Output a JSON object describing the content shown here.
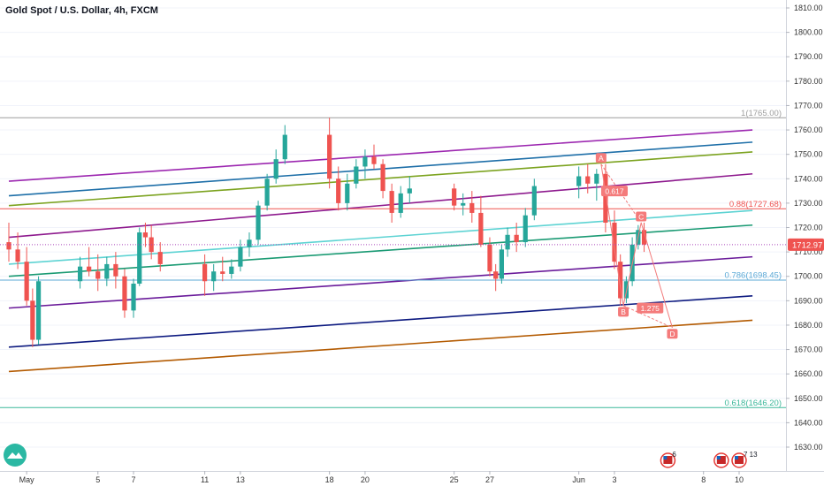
{
  "header": {
    "title": "Gold Spot / U.S. Dollar, 4h, FXCM"
  },
  "price_badge": {
    "label": "1712.97",
    "color": "#ef5350"
  },
  "logo": {
    "name": "tradingview-logo-icon"
  },
  "event_icons": [
    {
      "name": "us-flag-event-icon",
      "count": "6",
      "date": "Jun 6"
    },
    {
      "name": "us-flag-event-icon",
      "count": "",
      "date": "Jun 9"
    },
    {
      "name": "us-flag-event-icon",
      "count": "7 13",
      "date": "Jun 10"
    }
  ],
  "chart_data": {
    "type": "candlestick",
    "title": "Gold Spot / U.S. Dollar, 4h, FXCM",
    "y_axis": {
      "position": "right",
      "ylim": [
        1623,
        1814
      ],
      "ticks": [
        1630,
        1640,
        1650,
        1660,
        1670,
        1680,
        1690,
        1700,
        1710,
        1720,
        1730,
        1740,
        1750,
        1760,
        1770,
        1780,
        1790,
        1800,
        1810
      ],
      "tick_labels": [
        "1630.00",
        "1640.00",
        "1650.00",
        "1660.00",
        "1670.00",
        "1680.00",
        "1690.00",
        "1700.00",
        "1710.00",
        "1720.00",
        "1730.00",
        "1740.00",
        "1750.00",
        "1760.00",
        "1770.00",
        "1780.00",
        "1790.00",
        "1800.00",
        "1810.00"
      ]
    },
    "x_axis": {
      "first_date": "2020-04-30",
      "last_date": "2020-06-10",
      "ticks": [
        {
          "date": "2020-05-01",
          "label": "May"
        },
        {
          "date": "2020-05-05",
          "label": "5"
        },
        {
          "date": "2020-05-07",
          "label": "7"
        },
        {
          "date": "2020-05-11",
          "label": "11"
        },
        {
          "date": "2020-05-13",
          "label": "13"
        },
        {
          "date": "2020-05-18",
          "label": "18"
        },
        {
          "date": "2020-05-20",
          "label": "20"
        },
        {
          "date": "2020-05-25",
          "label": "25"
        },
        {
          "date": "2020-05-27",
          "label": "27"
        },
        {
          "date": "2020-06-01",
          "label": "Jun"
        },
        {
          "date": "2020-06-03",
          "label": "3"
        },
        {
          "date": "2020-06-08",
          "label": "8"
        },
        {
          "date": "2020-06-10",
          "label": "10"
        }
      ]
    },
    "last_price": 1712.97,
    "colors": {
      "up": "#26a69a",
      "down": "#ef5350"
    },
    "candles": [
      {
        "d": "2020-04-30 00:00",
        "o": 1714,
        "h": 1722,
        "l": 1706,
        "c": 1711
      },
      {
        "d": "2020-04-30 12:00",
        "o": 1711,
        "h": 1718,
        "l": 1703,
        "c": 1706
      },
      {
        "d": "2020-05-01 00:00",
        "o": 1706,
        "h": 1712,
        "l": 1688,
        "c": 1690
      },
      {
        "d": "2020-05-01 08:00",
        "o": 1690,
        "h": 1695,
        "l": 1671,
        "c": 1674
      },
      {
        "d": "2020-05-01 16:00",
        "o": 1674,
        "h": 1700,
        "l": 1672,
        "c": 1698
      },
      {
        "d": "2020-05-04 00:00",
        "o": 1698,
        "h": 1708,
        "l": 1695,
        "c": 1704
      },
      {
        "d": "2020-05-04 12:00",
        "o": 1704,
        "h": 1712,
        "l": 1700,
        "c": 1702
      },
      {
        "d": "2020-05-05 00:00",
        "o": 1702,
        "h": 1709,
        "l": 1694,
        "c": 1699
      },
      {
        "d": "2020-05-05 12:00",
        "o": 1699,
        "h": 1708,
        "l": 1696,
        "c": 1705
      },
      {
        "d": "2020-05-06 00:00",
        "o": 1705,
        "h": 1710,
        "l": 1695,
        "c": 1700
      },
      {
        "d": "2020-05-06 12:00",
        "o": 1700,
        "h": 1703,
        "l": 1683,
        "c": 1686
      },
      {
        "d": "2020-05-07 00:00",
        "o": 1686,
        "h": 1699,
        "l": 1683,
        "c": 1697
      },
      {
        "d": "2020-05-07 08:00",
        "o": 1697,
        "h": 1720,
        "l": 1696,
        "c": 1718
      },
      {
        "d": "2020-05-07 16:00",
        "o": 1718,
        "h": 1722,
        "l": 1712,
        "c": 1716
      },
      {
        "d": "2020-05-08 00:00",
        "o": 1716,
        "h": 1721,
        "l": 1707,
        "c": 1710
      },
      {
        "d": "2020-05-08 12:00",
        "o": 1710,
        "h": 1714,
        "l": 1702,
        "c": 1705
      },
      {
        "d": "2020-05-11 00:00",
        "o": 1705,
        "h": 1709,
        "l": 1692,
        "c": 1698
      },
      {
        "d": "2020-05-11 12:00",
        "o": 1698,
        "h": 1705,
        "l": 1694,
        "c": 1702
      },
      {
        "d": "2020-05-12 00:00",
        "o": 1702,
        "h": 1708,
        "l": 1698,
        "c": 1701
      },
      {
        "d": "2020-05-12 12:00",
        "o": 1701,
        "h": 1707,
        "l": 1699,
        "c": 1704
      },
      {
        "d": "2020-05-13 00:00",
        "o": 1704,
        "h": 1715,
        "l": 1702,
        "c": 1712
      },
      {
        "d": "2020-05-13 12:00",
        "o": 1712,
        "h": 1718,
        "l": 1708,
        "c": 1715
      },
      {
        "d": "2020-05-14 00:00",
        "o": 1715,
        "h": 1731,
        "l": 1713,
        "c": 1729
      },
      {
        "d": "2020-05-14 12:00",
        "o": 1729,
        "h": 1742,
        "l": 1727,
        "c": 1740
      },
      {
        "d": "2020-05-15 00:00",
        "o": 1740,
        "h": 1752,
        "l": 1738,
        "c": 1748
      },
      {
        "d": "2020-05-15 12:00",
        "o": 1748,
        "h": 1762,
        "l": 1746,
        "c": 1758
      },
      {
        "d": "2020-05-18 00:00",
        "o": 1758,
        "h": 1765,
        "l": 1736,
        "c": 1740
      },
      {
        "d": "2020-05-18 12:00",
        "o": 1740,
        "h": 1745,
        "l": 1727,
        "c": 1730
      },
      {
        "d": "2020-05-19 00:00",
        "o": 1730,
        "h": 1742,
        "l": 1727,
        "c": 1738
      },
      {
        "d": "2020-05-19 12:00",
        "o": 1738,
        "h": 1748,
        "l": 1736,
        "c": 1745
      },
      {
        "d": "2020-05-20 00:00",
        "o": 1745,
        "h": 1752,
        "l": 1740,
        "c": 1749
      },
      {
        "d": "2020-05-20 12:00",
        "o": 1749,
        "h": 1754,
        "l": 1744,
        "c": 1746
      },
      {
        "d": "2020-05-21 00:00",
        "o": 1746,
        "h": 1748,
        "l": 1732,
        "c": 1735
      },
      {
        "d": "2020-05-21 12:00",
        "o": 1735,
        "h": 1738,
        "l": 1722,
        "c": 1726
      },
      {
        "d": "2020-05-22 00:00",
        "o": 1726,
        "h": 1737,
        "l": 1724,
        "c": 1734
      },
      {
        "d": "2020-05-22 12:00",
        "o": 1734,
        "h": 1741,
        "l": 1730,
        "c": 1736
      },
      {
        "d": "2020-05-25 00:00",
        "o": 1736,
        "h": 1738,
        "l": 1727,
        "c": 1729
      },
      {
        "d": "2020-05-25 12:00",
        "o": 1729,
        "h": 1734,
        "l": 1725,
        "c": 1730
      },
      {
        "d": "2020-05-26 00:00",
        "o": 1730,
        "h": 1735,
        "l": 1722,
        "c": 1726
      },
      {
        "d": "2020-05-26 12:00",
        "o": 1726,
        "h": 1733,
        "l": 1712,
        "c": 1713
      },
      {
        "d": "2020-05-27 00:00",
        "o": 1713,
        "h": 1716,
        "l": 1700,
        "c": 1702
      },
      {
        "d": "2020-05-27 08:00",
        "o": 1702,
        "h": 1705,
        "l": 1694,
        "c": 1699
      },
      {
        "d": "2020-05-27 16:00",
        "o": 1699,
        "h": 1713,
        "l": 1697,
        "c": 1711
      },
      {
        "d": "2020-05-28 00:00",
        "o": 1711,
        "h": 1720,
        "l": 1708,
        "c": 1717
      },
      {
        "d": "2020-05-28 12:00",
        "o": 1717,
        "h": 1722,
        "l": 1710,
        "c": 1714
      },
      {
        "d": "2020-05-29 00:00",
        "o": 1714,
        "h": 1728,
        "l": 1712,
        "c": 1725
      },
      {
        "d": "2020-05-29 12:00",
        "o": 1725,
        "h": 1740,
        "l": 1723,
        "c": 1737
      },
      {
        "d": "2020-06-01 00:00",
        "o": 1737,
        "h": 1745,
        "l": 1732,
        "c": 1741
      },
      {
        "d": "2020-06-01 12:00",
        "o": 1741,
        "h": 1746,
        "l": 1734,
        "c": 1738
      },
      {
        "d": "2020-06-02 00:00",
        "o": 1738,
        "h": 1744,
        "l": 1731,
        "c": 1742
      },
      {
        "d": "2020-06-02 12:00",
        "o": 1742,
        "h": 1746,
        "l": 1718,
        "c": 1722
      },
      {
        "d": "2020-06-03 00:00",
        "o": 1722,
        "h": 1727,
        "l": 1703,
        "c": 1706
      },
      {
        "d": "2020-06-03 08:00",
        "o": 1706,
        "h": 1709,
        "l": 1688,
        "c": 1691
      },
      {
        "d": "2020-06-03 16:00",
        "o": 1691,
        "h": 1700,
        "l": 1689,
        "c": 1698
      },
      {
        "d": "2020-06-04 00:00",
        "o": 1698,
        "h": 1716,
        "l": 1696,
        "c": 1713
      },
      {
        "d": "2020-06-04 08:00",
        "o": 1713,
        "h": 1721,
        "l": 1711,
        "c": 1719
      },
      {
        "d": "2020-06-04 16:00",
        "o": 1719,
        "h": 1722,
        "l": 1710,
        "c": 1713
      }
    ],
    "trend_lines": [
      {
        "color": "#9c27b0",
        "from": {
          "d": "2020-04-30 00:00",
          "y": 1739
        },
        "to": {
          "d": "2020-06-10 18:00",
          "y": 1760
        }
      },
      {
        "color": "#1e6fa8",
        "from": {
          "d": "2020-04-30 00:00",
          "y": 1733
        },
        "to": {
          "d": "2020-06-10 18:00",
          "y": 1755
        }
      },
      {
        "color": "#7ca320",
        "from": {
          "d": "2020-04-30 00:00",
          "y": 1729
        },
        "to": {
          "d": "2020-06-10 18:00",
          "y": 1751
        }
      },
      {
        "color": "#8e1a8e",
        "from": {
          "d": "2020-04-30 00:00",
          "y": 1716
        },
        "to": {
          "d": "2020-06-10 18:00",
          "y": 1742
        }
      },
      {
        "color": "#5dd3d3",
        "from": {
          "d": "2020-04-30 00:00",
          "y": 1705
        },
        "to": {
          "d": "2020-06-10 18:00",
          "y": 1727
        }
      },
      {
        "color": "#1a9a73",
        "from": {
          "d": "2020-04-30 00:00",
          "y": 1700
        },
        "to": {
          "d": "2020-06-10 18:00",
          "y": 1721
        }
      },
      {
        "color": "#6a1b9a",
        "from": {
          "d": "2020-04-30 00:00",
          "y": 1687
        },
        "to": {
          "d": "2020-06-10 18:00",
          "y": 1708
        }
      },
      {
        "color": "#0d1a80",
        "from": {
          "d": "2020-04-30 00:00",
          "y": 1671
        },
        "to": {
          "d": "2020-06-10 18:00",
          "y": 1692
        }
      },
      {
        "color": "#b35a00",
        "from": {
          "d": "2020-04-30 00:00",
          "y": 1661
        },
        "to": {
          "d": "2020-06-10 18:00",
          "y": 1682
        }
      }
    ],
    "fib_levels": [
      {
        "label": "1(1765.00)",
        "value": 1765.0,
        "color": "#9e9e9e"
      },
      {
        "label": "0.88(1727.68)",
        "value": 1727.68,
        "color": "#ef5350"
      },
      {
        "label": "0.786(1698.45)",
        "value": 1698.45,
        "color": "#5ba9d6"
      },
      {
        "label": "0.618(1646.20)",
        "value": 1646.2,
        "color": "#3cb89a"
      }
    ],
    "harmonic_pattern": {
      "color": "#f27a7a",
      "points": [
        {
          "label": "A",
          "d": "2020-06-02 06:00",
          "y": 1746
        },
        {
          "label": "B",
          "d": "2020-06-03 12:00",
          "y": 1688
        },
        {
          "label": "C",
          "d": "2020-06-04 12:00",
          "y": 1722
        },
        {
          "label": "D",
          "d": "2020-06-06 06:00",
          "y": 1679
        }
      ],
      "ratios": [
        {
          "label": "0.617",
          "d": "2020-06-03 00:00",
          "y": 1735
        },
        {
          "label": "1.275",
          "d": "2020-06-05 00:00",
          "y": 1687
        }
      ]
    }
  }
}
